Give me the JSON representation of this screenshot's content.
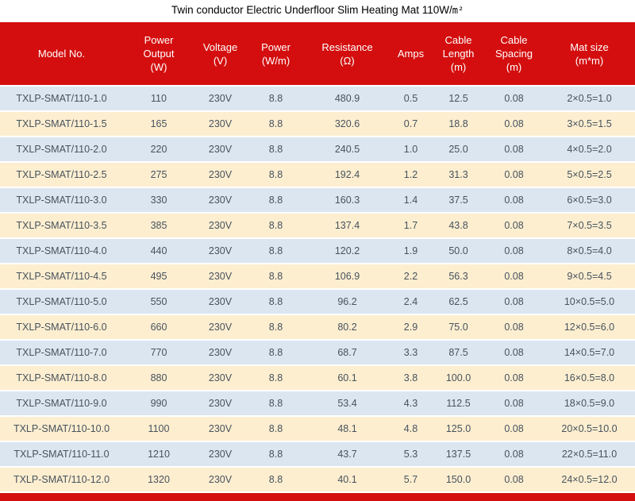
{
  "title": {
    "text": "Twin conductor Electric Underfloor Slim Heating Mat 110W/",
    "unit": "m²"
  },
  "colors": {
    "header_bg": "#d40e0e",
    "row_blue": "#dce6f1",
    "row_cream": "#fdeed0",
    "body_text": "#47525d",
    "header_text": "#ffffff",
    "title_text": "#000000"
  },
  "table": {
    "columns": [
      {
        "id": "model",
        "label": "Model No.",
        "unit": ""
      },
      {
        "id": "power-output",
        "label": "Power Output",
        "unit": "(W)"
      },
      {
        "id": "voltage",
        "label": "Voltage",
        "unit": "(V)"
      },
      {
        "id": "power",
        "label": "Power",
        "unit": "(W/m)"
      },
      {
        "id": "resistance",
        "label": "Resistance",
        "unit": "(Ω)"
      },
      {
        "id": "amps",
        "label": "Amps",
        "unit": ""
      },
      {
        "id": "cable-length",
        "label": "Cable Length",
        "unit": "(m)"
      },
      {
        "id": "cable-spacing",
        "label": "Cable Spacing",
        "unit": "(m)"
      },
      {
        "id": "mat-size",
        "label": "Mat size",
        "unit": "(m*m)"
      }
    ],
    "rows": [
      [
        "TXLP-SMAT/110-1.0",
        "110",
        "230V",
        "8.8",
        "480.9",
        "0.5",
        "12.5",
        "0.08",
        "2×0.5=1.0"
      ],
      [
        "TXLP-SMAT/110-1.5",
        "165",
        "230V",
        "8.8",
        "320.6",
        "0.7",
        "18.8",
        "0.08",
        "3×0.5=1.5"
      ],
      [
        "TXLP-SMAT/110-2.0",
        "220",
        "230V",
        "8.8",
        "240.5",
        "1.0",
        "25.0",
        "0.08",
        "4×0.5=2.0"
      ],
      [
        "TXLP-SMAT/110-2.5",
        "275",
        "230V",
        "8.8",
        "192.4",
        "1.2",
        "31.3",
        "0.08",
        "5×0.5=2.5"
      ],
      [
        "TXLP-SMAT/110-3.0",
        "330",
        "230V",
        "8.8",
        "160.3",
        "1.4",
        "37.5",
        "0.08",
        "6×0.5=3.0"
      ],
      [
        "TXLP-SMAT/110-3.5",
        "385",
        "230V",
        "8.8",
        "137.4",
        "1.7",
        "43.8",
        "0.08",
        "7×0.5=3.5"
      ],
      [
        "TXLP-SMAT/110-4.0",
        "440",
        "230V",
        "8.8",
        "120.2",
        "1.9",
        "50.0",
        "0.08",
        "8×0.5=4.0"
      ],
      [
        "TXLP-SMAT/110-4.5",
        "495",
        "230V",
        "8.8",
        "106.9",
        "2.2",
        "56.3",
        "0.08",
        "9×0.5=4.5"
      ],
      [
        "TXLP-SMAT/110-5.0",
        "550",
        "230V",
        "8.8",
        "96.2",
        "2.4",
        "62.5",
        "0.08",
        "10×0.5=5.0"
      ],
      [
        "TXLP-SMAT/110-6.0",
        "660",
        "230V",
        "8.8",
        "80.2",
        "2.9",
        "75.0",
        "0.08",
        "12×0.5=6.0"
      ],
      [
        "TXLP-SMAT/110-7.0",
        "770",
        "230V",
        "8.8",
        "68.7",
        "3.3",
        "87.5",
        "0.08",
        "14×0.5=7.0"
      ],
      [
        "TXLP-SMAT/110-8.0",
        "880",
        "230V",
        "8.8",
        "60.1",
        "3.8",
        "100.0",
        "0.08",
        "16×0.5=8.0"
      ],
      [
        "TXLP-SMAT/110-9.0",
        "990",
        "230V",
        "8.8",
        "53.4",
        "4.3",
        "112.5",
        "0.08",
        "18×0.5=9.0"
      ],
      [
        "TXLP-SMAT/110-10.0",
        "1100",
        "230V",
        "8.8",
        "48.1",
        "4.8",
        "125.0",
        "0.08",
        "20×0.5=10.0"
      ],
      [
        "TXLP-SMAT/110-11.0",
        "1210",
        "230V",
        "8.8",
        "43.7",
        "5.3",
        "137.5",
        "0.08",
        "22×0.5=11.0"
      ],
      [
        "TXLP-SMAT/110-12.0",
        "1320",
        "230V",
        "8.8",
        "40.1",
        "5.7",
        "150.0",
        "0.08",
        "24×0.5=12.0"
      ]
    ]
  }
}
